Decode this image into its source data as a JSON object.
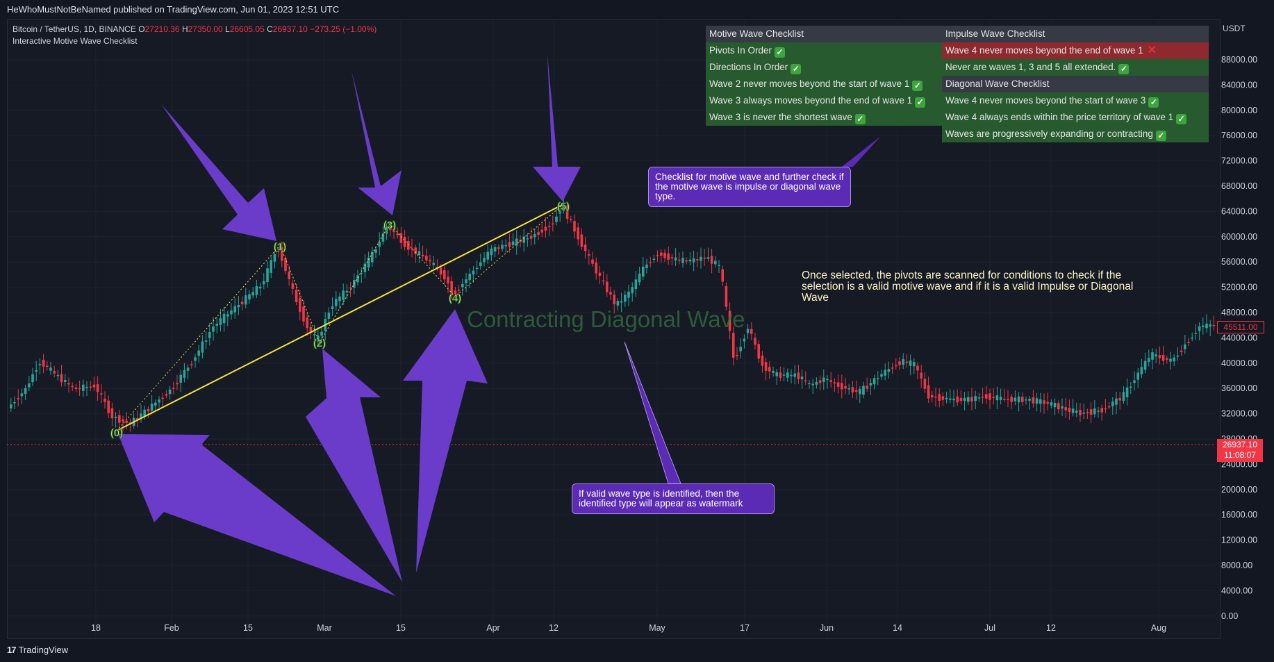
{
  "header": {
    "publish_line": "HeWhoMustNotBeNamed published on TradingView.com, Jun 01, 2023 12:51 UTC"
  },
  "legend": {
    "symbol": "Bitcoin / TetherUS, 1D, BINANCE",
    "o_label": "O",
    "o_value": "27210.36",
    "h_label": "H",
    "h_value": "27350.00",
    "l_label": "L",
    "l_value": "26605.05",
    "c_label": "C",
    "c_value": "26937.10",
    "change": "−273.25 (−1.00%)",
    "indicator": "Interactive Motive Wave Checklist"
  },
  "axis": {
    "unit": "USDT",
    "y_ticks": [
      "88000.00",
      "84000.00",
      "80000.00",
      "76000.00",
      "72000.00",
      "68000.00",
      "64000.00",
      "60000.00",
      "56000.00",
      "52000.00",
      "48000.00",
      "44000.00",
      "40000.00",
      "36000.00",
      "32000.00",
      "28000.00",
      "24000.00",
      "20000.00",
      "16000.00",
      "12000.00",
      "8000.00",
      "4000.00",
      "0.00"
    ],
    "x_ticks": [
      "18",
      "Feb",
      "15",
      "Mar",
      "15",
      "Apr",
      "12",
      "May",
      "17",
      "Jun",
      "14",
      "Jul",
      "12",
      "Aug"
    ]
  },
  "price_tags": {
    "marker_price": "45511.00",
    "current_price": "26937.10",
    "countdown": "11:08:07"
  },
  "motive_checklist": {
    "title": "Motive Wave Checklist",
    "items": [
      {
        "text": "Pivots In Order",
        "ok": true
      },
      {
        "text": "Directions In Order",
        "ok": true
      },
      {
        "text": "Wave 2 never moves beyond the start of wave 1",
        "ok": true
      },
      {
        "text": "Wave 3 always moves beyond the end of wave 1",
        "ok": true
      },
      {
        "text": "Wave 3 is never the shortest wave",
        "ok": true
      }
    ]
  },
  "impulse_checklist": {
    "title": "Impulse Wave Checklist",
    "items": [
      {
        "text": "Wave 4 never moves beyond the end of wave 1",
        "ok": false
      },
      {
        "text": "Never are waves 1, 3 and 5 all extended.",
        "ok": true
      }
    ]
  },
  "diagonal_checklist": {
    "title": "Diagonal Wave Checklist",
    "items": [
      {
        "text": "Wave 4 never moves beyond the start of wave 3",
        "ok": true
      },
      {
        "text": "Wave 4 always ends within the price territory of wave 1",
        "ok": true
      },
      {
        "text": "Waves are progressively expanding or contracting",
        "ok": true
      }
    ]
  },
  "icons": {
    "check": "✓",
    "cross": "✕"
  },
  "annotations": {
    "callout_checklist": "Checklist for motive wave and further check if the motive wave is impulse or diagonal wave type.",
    "note_scan": "Once selected, the pivots are scanned for conditions to check if the selection is a valid motive wave and if it is a valid Impulse or Diagonal Wave",
    "callout_watermark": "If valid wave type is identified, then the identified type will appear as watermark",
    "watermark": "Contracting Diagonal Wave"
  },
  "pivots": [
    "(0)",
    "(1)",
    "(2)",
    "(3)",
    "(4)",
    "(5)"
  ],
  "colors": {
    "background": "#131722",
    "up": "#26a69a",
    "down": "#f23645",
    "arrow": "#6a3cc9",
    "trend_line": "#f2e23a",
    "pivot": "#d4f774"
  },
  "footer": {
    "brand": "TradingView",
    "logo_text": "17"
  }
}
